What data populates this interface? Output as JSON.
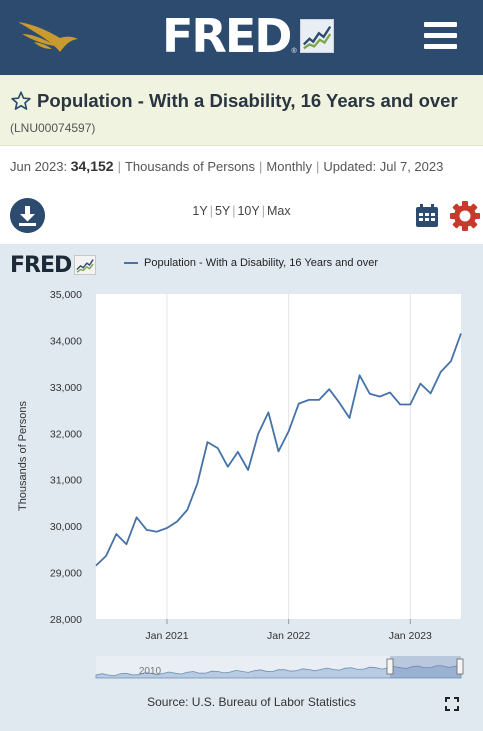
{
  "header": {
    "logo_text": "FRED",
    "logo_reg": "®",
    "eagle_icon": "eagle-logo-icon",
    "menu_icon": "hamburger-menu-icon"
  },
  "series": {
    "title": "Population - With a Disability, 16 Years and over",
    "id": "(LNU00074597)",
    "date": "Jun 2023:",
    "value": "34,152",
    "units": "Thousands of Persons",
    "frequency": "Monthly",
    "updated_label": "Updated:",
    "updated_date": "Jul 7, 2023"
  },
  "toolbar": {
    "ranges": [
      "1Y",
      "5Y",
      "10Y",
      "Max"
    ],
    "download_icon": "download-icon",
    "calendar_icon": "calendar-icon",
    "gear_icon": "gear-icon"
  },
  "colors": {
    "header_bg": "#2d4b6f",
    "title_band_bg": "#eff3e0",
    "chart_panel_bg": "#e1e9f0",
    "series_line": "#4572a7",
    "gear_red": "#c8392b",
    "eagle_gold": "#c99a2e"
  },
  "chart_data": {
    "type": "line",
    "legend": "Population - With a Disability, 16 Years and over",
    "ylabel": "Thousands of Persons",
    "ylim": [
      28000,
      35000
    ],
    "yticks": [
      "28,000",
      "29,000",
      "30,000",
      "31,000",
      "32,000",
      "33,000",
      "34,000",
      "35,000"
    ],
    "xticks": [
      "Jan 2021",
      "Jan 2022",
      "Jan 2023"
    ],
    "x": [
      "2020-06",
      "2020-07",
      "2020-08",
      "2020-09",
      "2020-10",
      "2020-11",
      "2020-12",
      "2021-01",
      "2021-02",
      "2021-03",
      "2021-04",
      "2021-05",
      "2021-06",
      "2021-07",
      "2021-08",
      "2021-09",
      "2021-10",
      "2021-11",
      "2021-12",
      "2022-01",
      "2022-02",
      "2022-03",
      "2022-04",
      "2022-05",
      "2022-06",
      "2022-07",
      "2022-08",
      "2022-09",
      "2022-10",
      "2022-11",
      "2022-12",
      "2023-01",
      "2023-02",
      "2023-03",
      "2023-04",
      "2023-05",
      "2023-06"
    ],
    "values": [
      29150,
      29360,
      29830,
      29610,
      30190,
      29920,
      29880,
      29960,
      30100,
      30350,
      30920,
      31810,
      31680,
      31280,
      31600,
      31210,
      31990,
      32450,
      31610,
      32040,
      32640,
      32720,
      32720,
      32950,
      32660,
      32330,
      33250,
      32850,
      32790,
      32880,
      32620,
      32620,
      33070,
      32860,
      33320,
      33550,
      34152
    ],
    "grid": "vertical",
    "navigator_label": "2010",
    "source": "Source: U.S. Bureau of Labor Statistics"
  }
}
